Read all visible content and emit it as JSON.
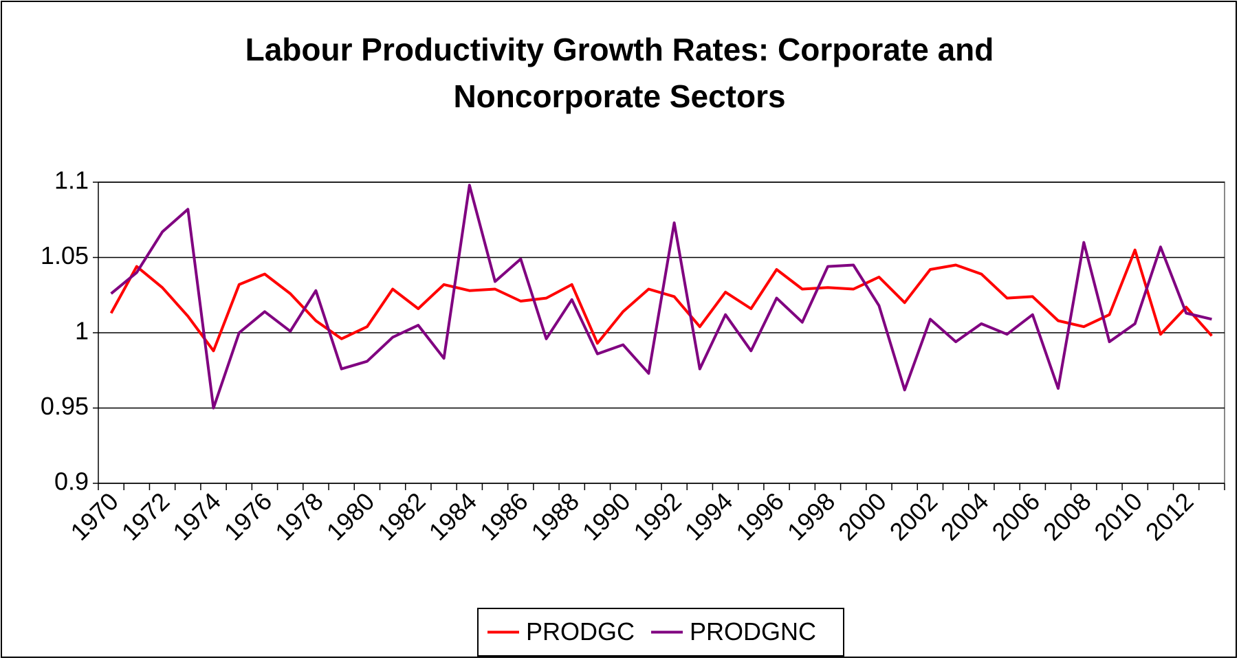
{
  "chart_data": {
    "type": "line",
    "title": "Labour Productivity Growth Rates: Corporate and Noncorporate Sectors",
    "categories": [
      "1970",
      null,
      "1972",
      null,
      "1974",
      null,
      "1976",
      null,
      "1978",
      null,
      "1980",
      null,
      "1982",
      null,
      "1984",
      null,
      "1986",
      null,
      "1988",
      null,
      "1990",
      null,
      "1992",
      null,
      "1994",
      null,
      "1996",
      null,
      "1998",
      null,
      "2000",
      null,
      "2002",
      null,
      "2004",
      null,
      "2006",
      null,
      "2008",
      null,
      "2010",
      null,
      "2012",
      null
    ],
    "series": [
      {
        "name": "PRODGC",
        "color": "#ff0000",
        "values": [
          1.013,
          1.044,
          1.03,
          1.011,
          0.988,
          1.032,
          1.039,
          1.026,
          1.008,
          0.996,
          1.004,
          1.029,
          1.016,
          1.032,
          1.028,
          1.029,
          1.021,
          1.023,
          1.032,
          0.993,
          1.014,
          1.029,
          1.024,
          1.004,
          1.027,
          1.016,
          1.042,
          1.029,
          1.03,
          1.029,
          1.037,
          1.02,
          1.042,
          1.045,
          1.039,
          1.023,
          1.024,
          1.008,
          1.004,
          1.012,
          1.055,
          0.999,
          1.017,
          0.998
        ]
      },
      {
        "name": "PRODGNC",
        "color": "#800080",
        "values": [
          1.026,
          1.04,
          1.067,
          1.082,
          0.95,
          1.0,
          1.014,
          1.001,
          1.028,
          0.976,
          0.981,
          0.997,
          1.005,
          0.983,
          1.098,
          1.034,
          1.049,
          0.996,
          1.022,
          0.986,
          0.992,
          0.973,
          1.073,
          0.976,
          1.012,
          0.988,
          1.023,
          1.007,
          1.044,
          1.045,
          1.018,
          0.962,
          1.009,
          0.994,
          1.006,
          0.999,
          1.012,
          0.963,
          1.06,
          0.994,
          1.006,
          1.057,
          1.013,
          1.009
        ]
      }
    ],
    "ylim": [
      0.9,
      1.1
    ],
    "yticks": [
      0.9,
      0.95,
      1,
      1.05,
      1.1
    ],
    "grid": true,
    "legend": "bottom"
  }
}
